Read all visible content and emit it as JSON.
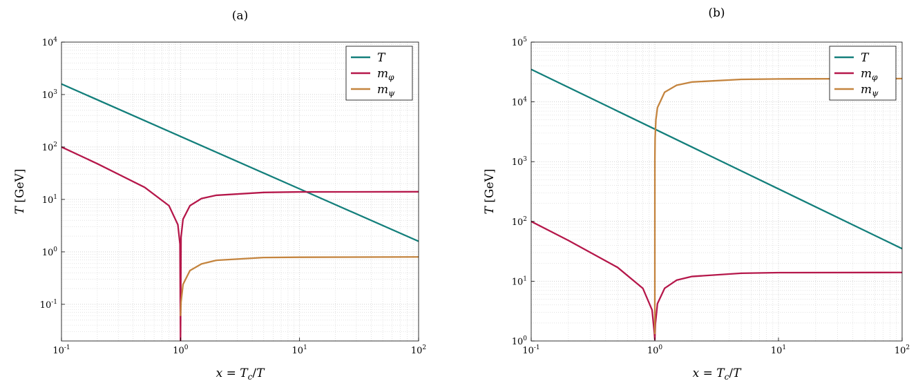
{
  "chart_data": [
    {
      "type": "line",
      "title": "(a)",
      "xlabel": "x = Tc/T",
      "ylabel": "T [GeV]",
      "x_scale": "log",
      "y_scale": "log",
      "xlim": [
        0.1,
        100
      ],
      "ylim": [
        0.02,
        10000
      ],
      "grid": true,
      "legend_position": "top-right",
      "x_ticks": [
        "10-1",
        "100",
        "101",
        "102"
      ],
      "y_ticks": [
        "10-1",
        "100",
        "101",
        "102",
        "103",
        "104"
      ],
      "series": [
        {
          "name": "T",
          "color": "#137f7b",
          "x": [
            0.1,
            1,
            10,
            100
          ],
          "y": [
            1590,
            159,
            15.9,
            1.59
          ]
        },
        {
          "name": "mφ",
          "color": "#b5174a",
          "x": [
            0.1,
            0.2,
            0.5,
            0.8,
            0.95,
            0.99,
            1.0,
            1.01,
            1.05,
            1.2,
            1.5,
            2,
            5,
            10,
            100
          ],
          "y": [
            100,
            48,
            17,
            7.6,
            3.3,
            1.4,
            0.02,
            1.9,
            4.2,
            7.6,
            10.4,
            12.0,
            13.6,
            13.9,
            14.0
          ]
        },
        {
          "name": "mψ",
          "color": "#c4843e",
          "x": [
            1.0,
            1.01,
            1.05,
            1.2,
            1.5,
            2,
            5,
            10,
            100
          ],
          "y": [
            0.06,
            0.11,
            0.24,
            0.44,
            0.59,
            0.69,
            0.78,
            0.79,
            0.8
          ]
        }
      ]
    },
    {
      "type": "line",
      "title": "(b)",
      "xlabel": "x = Tc/T",
      "ylabel": "T [GeV]",
      "x_scale": "log",
      "y_scale": "log",
      "xlim": [
        0.1,
        100
      ],
      "ylim": [
        1,
        100000
      ],
      "grid": true,
      "legend_position": "top-right",
      "x_ticks": [
        "10-1",
        "100",
        "101",
        "102"
      ],
      "y_ticks": [
        "100",
        "101",
        "102",
        "103",
        "104",
        "105"
      ],
      "series": [
        {
          "name": "T",
          "color": "#137f7b",
          "x": [
            0.1,
            1,
            10,
            100
          ],
          "y": [
            35000,
            3500,
            350,
            35
          ]
        },
        {
          "name": "mφ",
          "color": "#b5174a",
          "x": [
            0.1,
            0.2,
            0.5,
            0.8,
            0.95,
            0.99,
            1.0,
            1.01,
            1.05,
            1.2,
            1.5,
            2,
            5,
            10,
            100
          ],
          "y": [
            100,
            48,
            17,
            7.6,
            3.3,
            1.4,
            1.05,
            1.9,
            4.2,
            7.6,
            10.4,
            12.0,
            13.6,
            13.9,
            14.0
          ]
        },
        {
          "name": "mψ",
          "color": "#c4843e",
          "x": [
            1.0,
            1.001,
            1.005,
            1.02,
            1.05,
            1.2,
            1.5,
            2,
            5,
            10,
            100
          ],
          "y": [
            1.3,
            1100,
            2500,
            5000,
            8000,
            14500,
            19000,
            21500,
            23800,
            24200,
            24500
          ]
        }
      ]
    }
  ]
}
